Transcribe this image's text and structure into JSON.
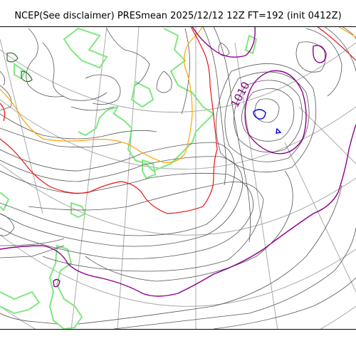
{
  "title": "NCEP(See disclaimer) PRESmean 2025/12/12 12Z FT=192 (init 0412Z)",
  "contour_label": "1010",
  "colors": {
    "isobar": "#555555",
    "isobar_1010": "#8b008b",
    "isobar_red": "#ee1111",
    "isobar_orange": "#ffa500",
    "low_center": "#0000ee",
    "coastline": "#7ee87e",
    "graticule": "#aaaaaa"
  },
  "legend_icons": [
    "contour-line-icon"
  ]
}
